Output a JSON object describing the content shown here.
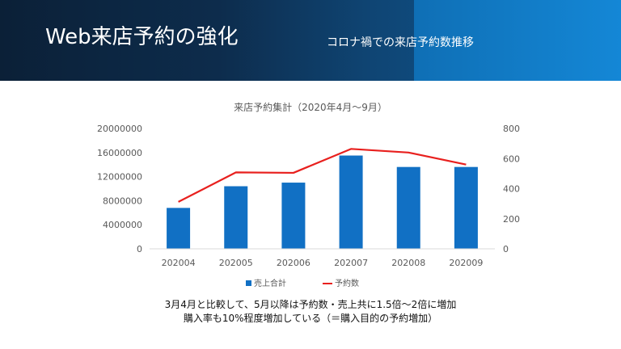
{
  "slide": {
    "title": "Web来店予約の強化",
    "subtitle": "コロナ禍での来店予約数推移"
  },
  "chart_data": {
    "type": "bar",
    "title": "来店予約集計（2020年4月～9月）",
    "categories": [
      "202004",
      "202005",
      "202006",
      "202007",
      "202008",
      "202009"
    ],
    "series": [
      {
        "name": "売上合計",
        "type": "bar",
        "axis": "left",
        "color": "#1170c4",
        "values": [
          6800000,
          10400000,
          11000000,
          15500000,
          13600000,
          13600000
        ]
      },
      {
        "name": "予約数",
        "type": "line",
        "axis": "right",
        "color": "#e8201e",
        "values": [
          312,
          508,
          505,
          664,
          640,
          560
        ]
      }
    ],
    "y_left": {
      "ylim": [
        0,
        20000000
      ],
      "ticks": [
        "0",
        "4000000",
        "8000000",
        "12000000",
        "16000000",
        "20000000"
      ]
    },
    "y_right": {
      "ylim": [
        0,
        800
      ],
      "ticks": [
        "0",
        "200",
        "400",
        "600",
        "800"
      ]
    },
    "grid": false,
    "legend": "bottom"
  },
  "notes": {
    "line1": "3月4月と比較して、5月以降は予約数・売上共に1.5倍～2倍に増加",
    "line2": "購入率も10%程度増加している（＝購入目的の予約増加）"
  }
}
